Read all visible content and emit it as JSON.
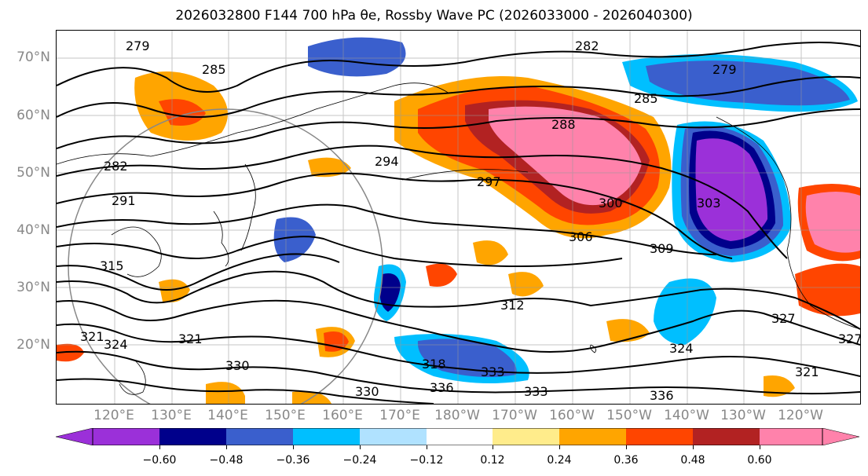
{
  "title": "2026032800 F144 700 hPa θe, Rossby Wave PC (2026033000 - 2026040300)",
  "map": {
    "lat_labels": [
      "70°N",
      "60°N",
      "50°N",
      "40°N",
      "30°N",
      "20°N"
    ],
    "lon_labels": [
      "120°E",
      "130°E",
      "140°E",
      "150°E",
      "160°E",
      "170°E",
      "180°W",
      "170°W",
      "160°W",
      "150°W",
      "140°W",
      "130°W",
      "120°W"
    ],
    "contour_labels": [
      "279",
      "285",
      "282",
      "282",
      "285",
      "279",
      "288",
      "291",
      "294",
      "297",
      "300",
      "303",
      "306",
      "309",
      "312",
      "315",
      "318",
      "321",
      "321",
      "324",
      "327",
      "327",
      "330",
      "330",
      "333",
      "333",
      "336",
      "336",
      "321",
      "324"
    ]
  },
  "colorbar": {
    "ticks": [
      "−0.60",
      "−0.48",
      "−0.36",
      "−0.24",
      "−0.12",
      "0.12",
      "0.24",
      "0.36",
      "0.48",
      "0.60"
    ],
    "colors": [
      "#9b30d9",
      "#00008b",
      "#3a5fcd",
      "#00bfff",
      "#b0e2ff",
      "#ffffff",
      "#ffec8b",
      "#ffa500",
      "#ff4500",
      "#b22222",
      "#ff82ab"
    ]
  }
}
